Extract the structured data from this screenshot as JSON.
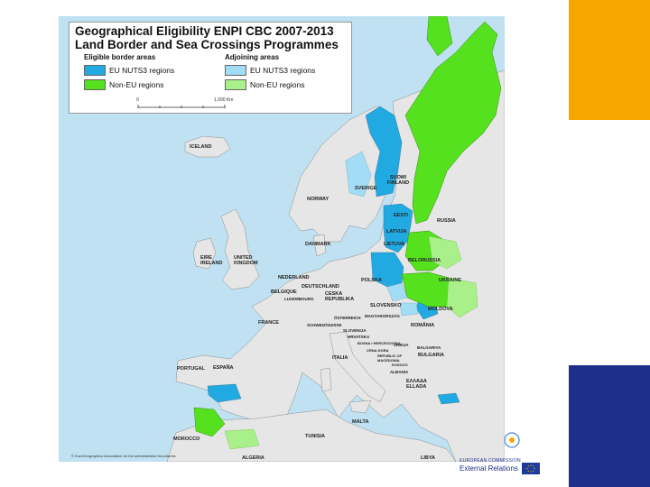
{
  "legend": {
    "title_line1": "Geographical Eligibility ENPI CBC 2007-2013",
    "title_line2": "Land Border and Sea Crossings Programmes",
    "eligible_heading": "Eligible border areas",
    "adjoining_heading": "Adjoining areas",
    "items": [
      {
        "label": "EU NUTS3 regions",
        "color": "#21a9e1"
      },
      {
        "label": "Non-EU regions",
        "color": "#55e11d"
      },
      {
        "label": "EU NUTS3 regions",
        "color": "#a3dcf5"
      },
      {
        "label": "Non-EU regions",
        "color": "#aaf08a"
      }
    ],
    "scale_start": "0",
    "scale_end": "1,000 Km"
  },
  "labels": {
    "iceland": "ICELAND",
    "suomi_finland": "SUOMI FINLAND",
    "sverige": "SVERIGE",
    "norway": "NORWAY",
    "eesti": "EESTI",
    "russia": "RUSSIA",
    "latvija": "LATVIJA",
    "danmark": "DANMARK",
    "lietuva": "LIETUVA",
    "eire_ireland": "EIRE IRELAND",
    "united_kingdom": "UNITED KINGDOM",
    "belorussia": "BELORUSSIA",
    "nederland": "NEDERLAND",
    "polska": "POLSKA",
    "ukraine": "UKRAINE",
    "deutschland": "DEUTSCHLAND",
    "belgique": "BELGIQUE",
    "luxembourg": "LUXEMBOURG",
    "ceska_republika": "CESKA REPUBLIKA",
    "slovensko": "SLOVENSKO",
    "moldova": "MOLDOVA",
    "france": "FRANCE",
    "osterreich": "ÖSTERREICH",
    "magyarorszag": "MAGYARORSZÁG",
    "romania": "ROMÂNIA",
    "schweiz": "SCHWEIZ/SUISSE",
    "slovenija": "SLOVENIJA",
    "hrvatska": "HRVATSKA",
    "bosna": "BOSNA I HERCEGOVINA",
    "srbija": "SRBIJA",
    "balgariya": "BALGARIYA",
    "bulgaria": "BULGARIA",
    "crna_gora": "CRNA GORA",
    "italia": "ITALIA",
    "north_macedonia": "REPUBLIC OF MACEDONIA",
    "kosovo": "KOSOVO",
    "albania": "ALBANIA",
    "portugal": "PORTUGAL",
    "espana": "ESPAÑA",
    "ellada": "ΕΛΛΑΔΑ ELLADA",
    "malta": "MALTA",
    "morocco": "MOROCCO",
    "tunisia": "TUNISIA",
    "algeria": "ALGERIA",
    "libya": "LIBYA"
  },
  "footnote": "© EuroGeographics Association for the administrative boundaries",
  "branding": {
    "line1": "EUROPEAN COMMISSION",
    "line2": "External Relations"
  },
  "colors": {
    "sea": "#bfe1f1",
    "land": "#e6e6e6",
    "eligible_eu": "#21a9e1",
    "eligible_non_eu": "#55e11d",
    "adjoining_eu": "#a3dcf5",
    "adjoining_non_eu": "#aaf08a",
    "accent_orange": "#f7a600",
    "accent_blue": "#1e2f8a"
  }
}
